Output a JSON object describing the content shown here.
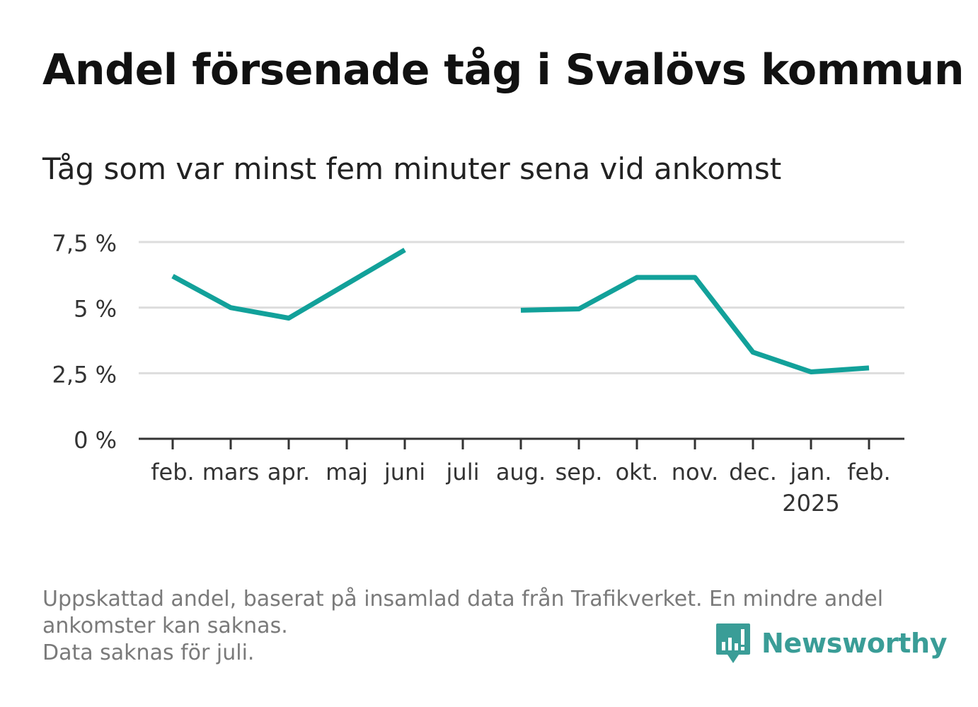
{
  "title": "Andel försenade tåg i Svalövs kommun",
  "subtitle": "Tåg som var minst fem minuter sena vid ankomst",
  "footer": {
    "line1": "Uppskattad andel, baserat på insamlad data från Trafikverket. En mindre andel",
    "line2": "ankomster kan saknas.",
    "line3": "Data saknas för juli."
  },
  "brand": {
    "name": "Newsworthy",
    "icon": "bar-chart-speech-bubble-icon",
    "color": "#3a9d97"
  },
  "colors": {
    "line": "#12a19a",
    "grid": "#dddddd",
    "axis": "#333333"
  },
  "chart_data": {
    "type": "line",
    "title": "Andel försenade tåg i Svalövs kommun",
    "subtitle": "Tåg som var minst fem minuter sena vid ankomst",
    "categories": [
      "feb.",
      "mars",
      "apr.",
      "maj",
      "juni",
      "juli",
      "aug.",
      "sep.",
      "okt.",
      "nov.",
      "dec.",
      "jan.",
      "feb."
    ],
    "category_sublabels": [
      "",
      "",
      "",
      "",
      "",
      "",
      "",
      "",
      "",
      "",
      "",
      "2025",
      ""
    ],
    "series": [
      {
        "values": [
          6.2,
          5.0,
          4.6,
          5.9,
          7.2,
          null,
          4.9,
          4.95,
          6.15,
          6.15,
          3.3,
          2.55,
          2.7
        ]
      }
    ],
    "ylim": [
      0,
      7.5
    ],
    "yticks": [
      0,
      2.5,
      5,
      7.5
    ],
    "ytick_labels": [
      "0 %",
      "2,5 %",
      "5 %",
      "7,5 %"
    ],
    "grid": true,
    "xlabel": "",
    "ylabel": ""
  }
}
